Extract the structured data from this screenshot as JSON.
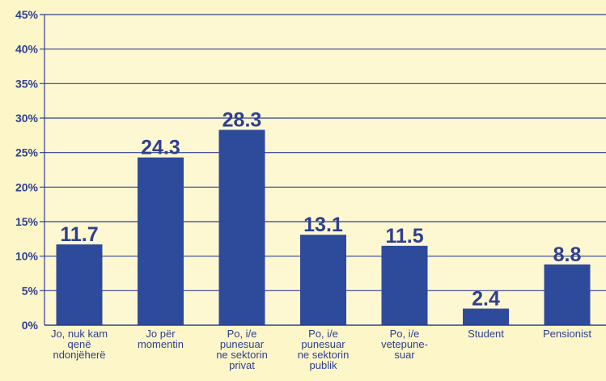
{
  "chart_data": {
    "type": "bar",
    "title": "",
    "xlabel": "",
    "ylabel": "",
    "ylim": [
      0,
      45
    ],
    "yticks": [
      0,
      5,
      10,
      15,
      20,
      25,
      30,
      35,
      40,
      45
    ],
    "ytick_labels": [
      "0%",
      "5%",
      "10%",
      "15%",
      "20%",
      "25%",
      "30%",
      "35%",
      "40%",
      "45%"
    ],
    "grid": true,
    "legend": "none",
    "categories": [
      [
        "Jo, nuk kam",
        "qenë",
        "ndonjëherë"
      ],
      [
        "Jo për",
        "momentin"
      ],
      [
        "Po, i/e",
        "punesuar",
        "ne sektorin",
        "privat"
      ],
      [
        "Po, i/e",
        "punesuar",
        "ne sektorin",
        "publik"
      ],
      [
        "Po, i/e",
        "vetepune-",
        "suar"
      ],
      [
        "Student"
      ],
      [
        "Pensionist"
      ]
    ],
    "values": [
      11.7,
      24.3,
      28.3,
      13.1,
      11.5,
      2.4,
      8.8
    ],
    "value_labels": [
      "11.7",
      "24.3",
      "28.3",
      "13.1",
      "11.5",
      "2.4",
      "8.8"
    ],
    "colors": {
      "background": "#fdf6c8",
      "plot_area": "#fef8d2",
      "bar": "#2e4a9a",
      "text": "#2e3f8f",
      "grid": "#2e3f8f"
    }
  }
}
